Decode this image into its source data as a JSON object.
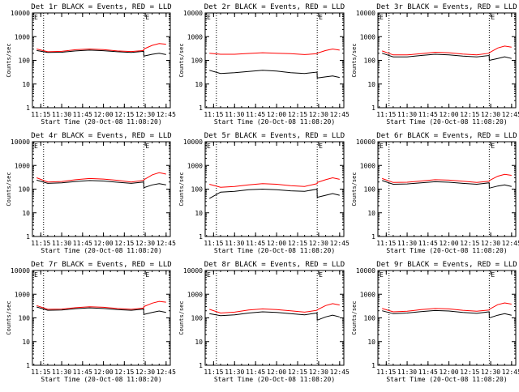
{
  "x_tick_labels": [
    "11:15",
    "11:30",
    "11:45",
    "12:00",
    "12:15",
    "12:30",
    "12:45"
  ],
  "y_tick_labels": [
    "1",
    "10",
    "100",
    "1000",
    "10000"
  ],
  "ylabel": "Counts/sec",
  "xlabel": "Start Time (20-Oct-08 11:08:20)",
  "series_colors": {
    "events": "#000000",
    "lld": "#ff0000"
  },
  "marker_letter": "E",
  "chart_data": [
    {
      "type": "line",
      "title": "Det 1r BLACK = Events, RED = LLD",
      "xlabel": "Start Time (20-Oct-08 11:08:20)",
      "ylabel": "Counts/sec",
      "y_scale": "log",
      "ylim": [
        1,
        10000
      ],
      "x": [
        "11:12",
        "11:20",
        "11:30",
        "11:40",
        "11:50",
        "12:00",
        "12:10",
        "12:20",
        "12:28.9",
        "12:29",
        "12:35",
        "12:40",
        "12:45"
      ],
      "vlines": [
        "11:17",
        "12:29"
      ],
      "series": [
        {
          "color": "black",
          "values": [
            260,
            215,
            220,
            250,
            270,
            255,
            230,
            215,
            240,
            150,
            180,
            200,
            175
          ]
        },
        {
          "color": "red",
          "values": [
            300,
            230,
            240,
            280,
            300,
            285,
            250,
            235,
            260,
            300,
            430,
            510,
            480
          ]
        }
      ]
    },
    {
      "type": "line",
      "title": "Det 2r BLACK = Events, RED = LLD",
      "xlabel": "Start Time (20-Oct-08 11:08:20)",
      "ylabel": "Counts/sec",
      "y_scale": "log",
      "ylim": [
        1,
        10000
      ],
      "x": [
        "11:12",
        "11:20",
        "11:30",
        "11:40",
        "11:50",
        "12:00",
        "12:10",
        "12:20",
        "12:28.9",
        "12:29",
        "12:35",
        "12:40",
        "12:45"
      ],
      "vlines": [
        "11:17",
        "12:29"
      ],
      "series": [
        {
          "color": "black",
          "values": [
            38,
            28,
            30,
            34,
            38,
            35,
            30,
            28,
            32,
            18,
            20,
            22,
            19
          ]
        },
        {
          "color": "red",
          "values": [
            200,
            180,
            180,
            195,
            210,
            200,
            190,
            175,
            190,
            200,
            260,
            300,
            270
          ]
        }
      ]
    },
    {
      "type": "line",
      "title": "Det 3r BLACK = Events, RED = LLD",
      "xlabel": "Start Time (20-Oct-08 11:08:20)",
      "ylabel": "Counts/sec",
      "y_scale": "log",
      "ylim": [
        1,
        10000
      ],
      "x": [
        "11:12",
        "11:20",
        "11:30",
        "11:40",
        "11:50",
        "12:00",
        "12:10",
        "12:20",
        "12:28.9",
        "12:29",
        "12:35",
        "12:40",
        "12:45"
      ],
      "vlines": [
        "11:17",
        "12:29"
      ],
      "series": [
        {
          "color": "black",
          "values": [
            200,
            140,
            140,
            160,
            180,
            170,
            150,
            140,
            160,
            100,
            120,
            140,
            120
          ]
        },
        {
          "color": "red",
          "values": [
            250,
            170,
            170,
            190,
            220,
            210,
            185,
            170,
            200,
            210,
            330,
            400,
            360
          ]
        }
      ]
    },
    {
      "type": "line",
      "title": "Det 4r BLACK = Events, RED = LLD",
      "xlabel": "Start Time (20-Oct-08 11:08:20)",
      "ylabel": "Counts/sec",
      "y_scale": "log",
      "ylim": [
        1,
        10000
      ],
      "x": [
        "11:12",
        "11:20",
        "11:30",
        "11:40",
        "11:50",
        "12:00",
        "12:10",
        "12:20",
        "12:28.9",
        "12:29",
        "12:35",
        "12:40",
        "12:45"
      ],
      "vlines": [
        "11:17",
        "12:29"
      ],
      "series": [
        {
          "color": "black",
          "values": [
            240,
            175,
            185,
            210,
            230,
            220,
            195,
            175,
            200,
            115,
            150,
            170,
            150
          ]
        },
        {
          "color": "red",
          "values": [
            300,
            200,
            210,
            250,
            280,
            265,
            235,
            200,
            235,
            250,
            400,
            500,
            430
          ]
        }
      ]
    },
    {
      "type": "line",
      "title": "Det 5r BLACK = Events, RED = LLD",
      "xlabel": "Start Time (20-Oct-08 11:08:20)",
      "ylabel": "Counts/sec",
      "y_scale": "log",
      "ylim": [
        1,
        10000
      ],
      "x": [
        "11:12",
        "11:20",
        "11:30",
        "11:40",
        "11:50",
        "12:00",
        "12:10",
        "12:20",
        "12:28.9",
        "12:29",
        "12:35",
        "12:40",
        "12:45"
      ],
      "vlines": [
        "11:17",
        "12:29"
      ],
      "series": [
        {
          "color": "black",
          "values": [
            40,
            75,
            80,
            95,
            100,
            95,
            85,
            80,
            100,
            45,
            55,
            65,
            55
          ]
        },
        {
          "color": "red",
          "values": [
            160,
            120,
            130,
            150,
            170,
            160,
            140,
            130,
            170,
            190,
            250,
            300,
            260
          ]
        }
      ]
    },
    {
      "type": "line",
      "title": "Det 6r BLACK = Events, RED = LLD",
      "xlabel": "Start Time (20-Oct-08 11:08:20)",
      "ylabel": "Counts/sec",
      "y_scale": "log",
      "ylim": [
        1,
        10000
      ],
      "x": [
        "11:12",
        "11:20",
        "11:30",
        "11:40",
        "11:50",
        "12:00",
        "12:10",
        "12:20",
        "12:28.9",
        "12:29",
        "12:35",
        "12:40",
        "12:45"
      ],
      "vlines": [
        "11:17",
        "12:29"
      ],
      "series": [
        {
          "color": "black",
          "values": [
            230,
            160,
            165,
            185,
            205,
            195,
            175,
            160,
            185,
            110,
            135,
            150,
            130
          ]
        },
        {
          "color": "red",
          "values": [
            280,
            190,
            195,
            220,
            250,
            240,
            215,
            190,
            215,
            230,
            350,
            420,
            380
          ]
        }
      ]
    },
    {
      "type": "line",
      "title": "Det 7r BLACK = Events, RED = LLD",
      "xlabel": "Start Time (20-Oct-08 11:08:20)",
      "ylabel": "Counts/sec",
      "y_scale": "log",
      "ylim": [
        1,
        10000
      ],
      "x": [
        "11:12",
        "11:20",
        "11:30",
        "11:40",
        "11:50",
        "12:00",
        "12:10",
        "12:20",
        "12:28.9",
        "12:29",
        "12:35",
        "12:40",
        "12:45"
      ],
      "vlines": [
        "11:17",
        "12:29"
      ],
      "series": [
        {
          "color": "black",
          "values": [
            290,
            210,
            215,
            245,
            265,
            250,
            225,
            210,
            235,
            140,
            170,
            195,
            170
          ]
        },
        {
          "color": "red",
          "values": [
            330,
            230,
            235,
            270,
            295,
            280,
            250,
            230,
            260,
            300,
            420,
            500,
            460
          ]
        }
      ]
    },
    {
      "type": "line",
      "title": "Det 8r BLACK = Events, RED = LLD",
      "xlabel": "Start Time (20-Oct-08 11:08:20)",
      "ylabel": "Counts/sec",
      "y_scale": "log",
      "ylim": [
        1,
        10000
      ],
      "x": [
        "11:12",
        "11:20",
        "11:30",
        "11:40",
        "11:50",
        "12:00",
        "12:10",
        "12:20",
        "12:28.9",
        "12:29",
        "12:35",
        "12:40",
        "12:45"
      ],
      "vlines": [
        "11:17",
        "12:29"
      ],
      "series": [
        {
          "color": "black",
          "values": [
            150,
            125,
            135,
            160,
            180,
            170,
            150,
            135,
            160,
            80,
            110,
            130,
            110
          ]
        },
        {
          "color": "red",
          "values": [
            230,
            160,
            175,
            215,
            240,
            225,
            200,
            175,
            210,
            220,
            330,
            400,
            350
          ]
        }
      ]
    },
    {
      "type": "line",
      "title": "Det 9r BLACK = Events, RED = LLD",
      "xlabel": "Start Time (20-Oct-08 11:08:20)",
      "ylabel": "Counts/sec",
      "y_scale": "log",
      "ylim": [
        1,
        10000
      ],
      "x": [
        "11:12",
        "11:20",
        "11:30",
        "11:40",
        "11:50",
        "12:00",
        "12:10",
        "12:20",
        "12:28.9",
        "12:29",
        "12:35",
        "12:40",
        "12:45"
      ],
      "vlines": [
        "11:17",
        "12:29"
      ],
      "series": [
        {
          "color": "black",
          "values": [
            200,
            150,
            160,
            185,
            205,
            195,
            170,
            155,
            180,
            100,
            130,
            150,
            130
          ]
        },
        {
          "color": "red",
          "values": [
            250,
            180,
            190,
            225,
            250,
            240,
            210,
            190,
            215,
            230,
            360,
            430,
            380
          ]
        }
      ]
    }
  ]
}
